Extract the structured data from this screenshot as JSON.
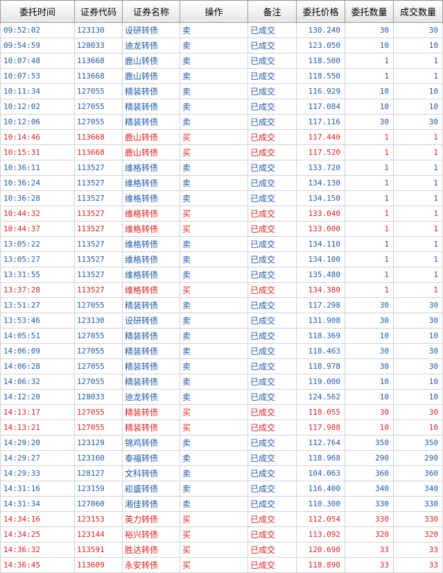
{
  "columns": [
    "委托时间",
    "证券代码",
    "证券名称",
    "操作",
    "备注",
    "委托价格",
    "委托数量",
    "成交数量"
  ],
  "rows": [
    {
      "time": "09:52:02",
      "code": "123130",
      "name": "设研转债",
      "op": "卖",
      "note": "已成交",
      "price": "130.240",
      "qty": "30",
      "filled": "30"
    },
    {
      "time": "09:54:59",
      "code": "128033",
      "name": "迪龙转债",
      "op": "卖",
      "note": "已成交",
      "price": "123.050",
      "qty": "10",
      "filled": "10"
    },
    {
      "time": "10:07:48",
      "code": "113668",
      "name": "鹿山转债",
      "op": "卖",
      "note": "已成交",
      "price": "118.500",
      "qty": "1",
      "filled": "1"
    },
    {
      "time": "10:07:53",
      "code": "113668",
      "name": "鹿山转债",
      "op": "卖",
      "note": "已成交",
      "price": "118.550",
      "qty": "1",
      "filled": "1"
    },
    {
      "time": "10:11:34",
      "code": "127055",
      "name": "精装转债",
      "op": "卖",
      "note": "已成交",
      "price": "116.929",
      "qty": "10",
      "filled": "10"
    },
    {
      "time": "10:12:02",
      "code": "127055",
      "name": "精装转债",
      "op": "卖",
      "note": "已成交",
      "price": "117.084",
      "qty": "10",
      "filled": "10"
    },
    {
      "time": "10:12:06",
      "code": "127055",
      "name": "精装转债",
      "op": "卖",
      "note": "已成交",
      "price": "117.116",
      "qty": "30",
      "filled": "30"
    },
    {
      "time": "10:14:46",
      "code": "113668",
      "name": "鹿山转债",
      "op": "买",
      "note": "已成交",
      "price": "117.440",
      "qty": "1",
      "filled": "1"
    },
    {
      "time": "10:15:31",
      "code": "113668",
      "name": "鹿山转债",
      "op": "买",
      "note": "已成交",
      "price": "117.520",
      "qty": "1",
      "filled": "1"
    },
    {
      "time": "10:36:11",
      "code": "113527",
      "name": "维格转债",
      "op": "卖",
      "note": "已成交",
      "price": "133.720",
      "qty": "1",
      "filled": "1"
    },
    {
      "time": "10:36:24",
      "code": "113527",
      "name": "维格转债",
      "op": "卖",
      "note": "已成交",
      "price": "134.130",
      "qty": "1",
      "filled": "1"
    },
    {
      "time": "10:36:28",
      "code": "113527",
      "name": "维格转债",
      "op": "卖",
      "note": "已成交",
      "price": "134.150",
      "qty": "1",
      "filled": "1"
    },
    {
      "time": "10:44:32",
      "code": "113527",
      "name": "维格转债",
      "op": "买",
      "note": "已成交",
      "price": "133.040",
      "qty": "1",
      "filled": "1"
    },
    {
      "time": "10:44:37",
      "code": "113527",
      "name": "维格转债",
      "op": "买",
      "note": "已成交",
      "price": "133.000",
      "qty": "1",
      "filled": "1"
    },
    {
      "time": "13:05:22",
      "code": "113527",
      "name": "维格转债",
      "op": "卖",
      "note": "已成交",
      "price": "134.110",
      "qty": "1",
      "filled": "1"
    },
    {
      "time": "13:05:27",
      "code": "113527",
      "name": "维格转债",
      "op": "卖",
      "note": "已成交",
      "price": "134.100",
      "qty": "1",
      "filled": "1"
    },
    {
      "time": "13:31:55",
      "code": "113527",
      "name": "维格转债",
      "op": "卖",
      "note": "已成交",
      "price": "135.480",
      "qty": "1",
      "filled": "1"
    },
    {
      "time": "13:37:28",
      "code": "113527",
      "name": "维格转债",
      "op": "买",
      "note": "已成交",
      "price": "134.380",
      "qty": "1",
      "filled": "1"
    },
    {
      "time": "13:51:27",
      "code": "127055",
      "name": "精装转债",
      "op": "卖",
      "note": "已成交",
      "price": "117.298",
      "qty": "30",
      "filled": "30"
    },
    {
      "time": "13:53:46",
      "code": "123130",
      "name": "设研转债",
      "op": "卖",
      "note": "已成交",
      "price": "131.908",
      "qty": "30",
      "filled": "30"
    },
    {
      "time": "14:05:51",
      "code": "127055",
      "name": "精装转债",
      "op": "卖",
      "note": "已成交",
      "price": "118.369",
      "qty": "10",
      "filled": "10"
    },
    {
      "time": "14:06:09",
      "code": "127055",
      "name": "精装转债",
      "op": "卖",
      "note": "已成交",
      "price": "118.463",
      "qty": "30",
      "filled": "30"
    },
    {
      "time": "14:06:28",
      "code": "127055",
      "name": "精装转债",
      "op": "卖",
      "note": "已成交",
      "price": "118.978",
      "qty": "30",
      "filled": "30"
    },
    {
      "time": "14:06:32",
      "code": "127055",
      "name": "精装转债",
      "op": "卖",
      "note": "已成交",
      "price": "119.000",
      "qty": "10",
      "filled": "10"
    },
    {
      "time": "14:12:20",
      "code": "128033",
      "name": "迪龙转债",
      "op": "卖",
      "note": "已成交",
      "price": "124.562",
      "qty": "10",
      "filled": "10"
    },
    {
      "time": "14:13:17",
      "code": "127055",
      "name": "精装转债",
      "op": "买",
      "note": "已成交",
      "price": "118.055",
      "qty": "30",
      "filled": "30"
    },
    {
      "time": "14:13:21",
      "code": "127055",
      "name": "精装转债",
      "op": "买",
      "note": "已成交",
      "price": "117.988",
      "qty": "10",
      "filled": "10"
    },
    {
      "time": "14:29:20",
      "code": "123129",
      "name": "锦鸡转债",
      "op": "卖",
      "note": "已成交",
      "price": "112.764",
      "qty": "350",
      "filled": "350"
    },
    {
      "time": "14:29:27",
      "code": "123160",
      "name": "泰福转债",
      "op": "卖",
      "note": "已成交",
      "price": "118.968",
      "qty": "290",
      "filled": "290"
    },
    {
      "time": "14:29:33",
      "code": "128127",
      "name": "文科转债",
      "op": "卖",
      "note": "已成交",
      "price": "104.063",
      "qty": "360",
      "filled": "360"
    },
    {
      "time": "14:31:16",
      "code": "123159",
      "name": "崧盛转债",
      "op": "卖",
      "note": "已成交",
      "price": "116.400",
      "qty": "340",
      "filled": "340"
    },
    {
      "time": "14:31:34",
      "code": "127060",
      "name": "湘佳转债",
      "op": "卖",
      "note": "已成交",
      "price": "110.300",
      "qty": "330",
      "filled": "330"
    },
    {
      "time": "14:34:16",
      "code": "123153",
      "name": "英力转债",
      "op": "买",
      "note": "已成交",
      "price": "112.054",
      "qty": "330",
      "filled": "330"
    },
    {
      "time": "14:34:25",
      "code": "123144",
      "name": "裕兴转债",
      "op": "买",
      "note": "已成交",
      "price": "113.092",
      "qty": "320",
      "filled": "320"
    },
    {
      "time": "14:36:32",
      "code": "113591",
      "name": "胜达转债",
      "op": "买",
      "note": "已成交",
      "price": "120.690",
      "qty": "33",
      "filled": "33"
    },
    {
      "time": "14:36:45",
      "code": "113609",
      "name": "永安转债",
      "op": "买",
      "note": "已成交",
      "price": "118.890",
      "qty": "33",
      "filled": "33"
    }
  ],
  "colors": {
    "sell": "#1f5aa8",
    "buy": "#e02020"
  }
}
